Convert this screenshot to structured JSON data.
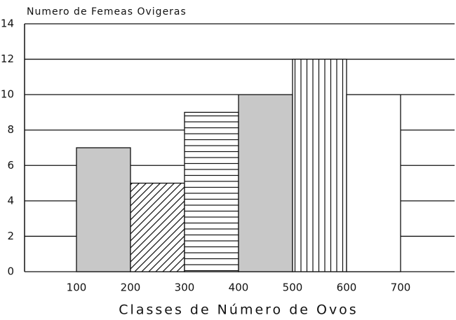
{
  "chart_data": {
    "type": "histogram",
    "title": "Numero de Femeas Ovigeras",
    "x_label": "Classes de Número de Ovos",
    "bins": [
      100,
      200,
      300,
      400,
      500,
      600,
      700
    ],
    "counts": [
      7,
      5,
      9,
      10,
      12,
      10
    ],
    "patterns": [
      "gray",
      "diagonal",
      "horizontal",
      "gray",
      "vertical",
      "white"
    ],
    "xlim": [
      0,
      800
    ],
    "xticks": [
      100,
      200,
      300,
      400,
      500,
      600,
      700
    ],
    "ylim": [
      0,
      14
    ],
    "yticks": [
      0,
      2,
      4,
      6,
      8,
      10,
      12,
      14
    ],
    "grid": true
  }
}
